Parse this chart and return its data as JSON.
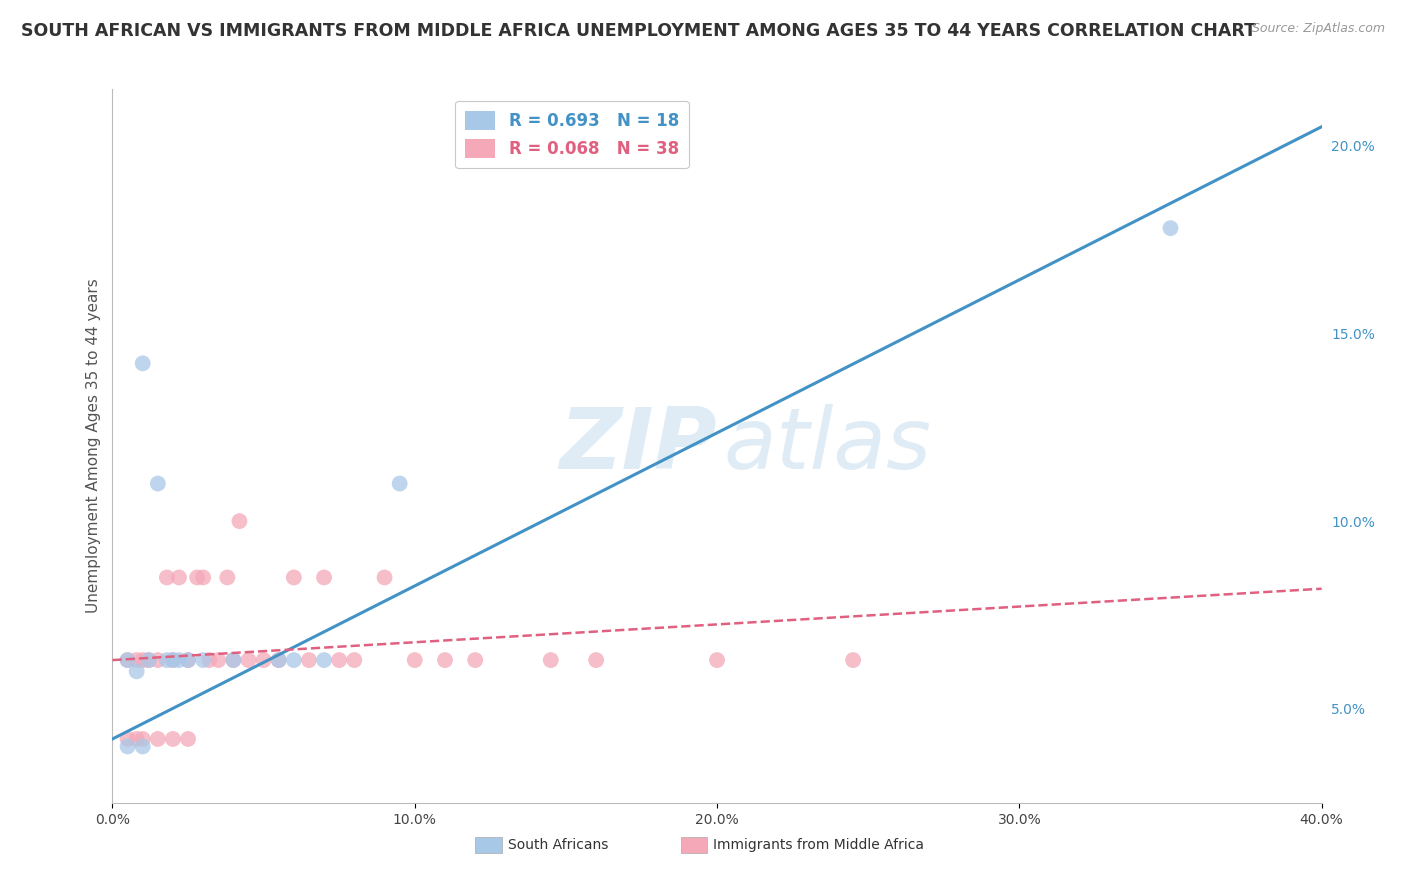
{
  "title": "SOUTH AFRICAN VS IMMIGRANTS FROM MIDDLE AFRICA UNEMPLOYMENT AMONG AGES 35 TO 44 YEARS CORRELATION CHART",
  "source": "Source: ZipAtlas.com",
  "ylabel": "Unemployment Among Ages 35 to 44 years",
  "blue_R": 0.693,
  "blue_N": 18,
  "pink_R": 0.068,
  "pink_N": 38,
  "blue_label": "South Africans",
  "pink_label": "Immigrants from Middle Africa",
  "blue_color": "#a8c8e8",
  "pink_color": "#f4a8b8",
  "blue_line_color": "#4292c6",
  "pink_line_color": "#e06080",
  "right_tick_color": "#4292c6",
  "xlim": [
    0.0,
    0.4
  ],
  "ylim": [
    0.025,
    0.215
  ],
  "right_yticks": [
    0.05,
    0.1,
    0.15,
    0.2
  ],
  "right_yticklabels": [
    "5.0%",
    "10.0%",
    "15.0%",
    "20.0%"
  ],
  "xticks": [
    0.0,
    0.1,
    0.2,
    0.3,
    0.4
  ],
  "xticklabels": [
    "0.0%",
    "10.0%",
    "20.0%",
    "30.0%",
    "40.0%"
  ],
  "blue_scatter_x": [
    0.005,
    0.008,
    0.01,
    0.012,
    0.015,
    0.018,
    0.02,
    0.022,
    0.025,
    0.03,
    0.04,
    0.055,
    0.06,
    0.07,
    0.095,
    0.35,
    0.01,
    0.005
  ],
  "blue_scatter_y": [
    0.063,
    0.06,
    0.142,
    0.063,
    0.11,
    0.063,
    0.063,
    0.063,
    0.063,
    0.063,
    0.063,
    0.063,
    0.063,
    0.063,
    0.11,
    0.178,
    0.04,
    0.04
  ],
  "pink_scatter_x": [
    0.005,
    0.008,
    0.01,
    0.012,
    0.015,
    0.018,
    0.02,
    0.022,
    0.025,
    0.028,
    0.03,
    0.032,
    0.035,
    0.038,
    0.04,
    0.042,
    0.045,
    0.05,
    0.055,
    0.06,
    0.065,
    0.07,
    0.075,
    0.08,
    0.09,
    0.1,
    0.11,
    0.12,
    0.145,
    0.16,
    0.2,
    0.245,
    0.005,
    0.008,
    0.01,
    0.015,
    0.02,
    0.025
  ],
  "pink_scatter_y": [
    0.063,
    0.063,
    0.063,
    0.063,
    0.063,
    0.085,
    0.063,
    0.085,
    0.063,
    0.085,
    0.085,
    0.063,
    0.063,
    0.085,
    0.063,
    0.1,
    0.063,
    0.063,
    0.063,
    0.085,
    0.063,
    0.085,
    0.063,
    0.063,
    0.085,
    0.063,
    0.063,
    0.063,
    0.063,
    0.063,
    0.063,
    0.063,
    0.042,
    0.042,
    0.042,
    0.042,
    0.042,
    0.042
  ],
  "blue_trend_x": [
    0.0,
    0.4
  ],
  "blue_trend_y": [
    0.042,
    0.205
  ],
  "pink_trend_x": [
    0.0,
    0.4
  ],
  "pink_trend_y": [
    0.063,
    0.082
  ],
  "watermark_zip": "ZIP",
  "watermark_atlas": "atlas",
  "background_color": "#ffffff",
  "grid_color": "#e0e0e0",
  "title_fontsize": 12.5,
  "label_fontsize": 11,
  "tick_fontsize": 10,
  "legend_fontsize": 12,
  "marker_size": 130
}
